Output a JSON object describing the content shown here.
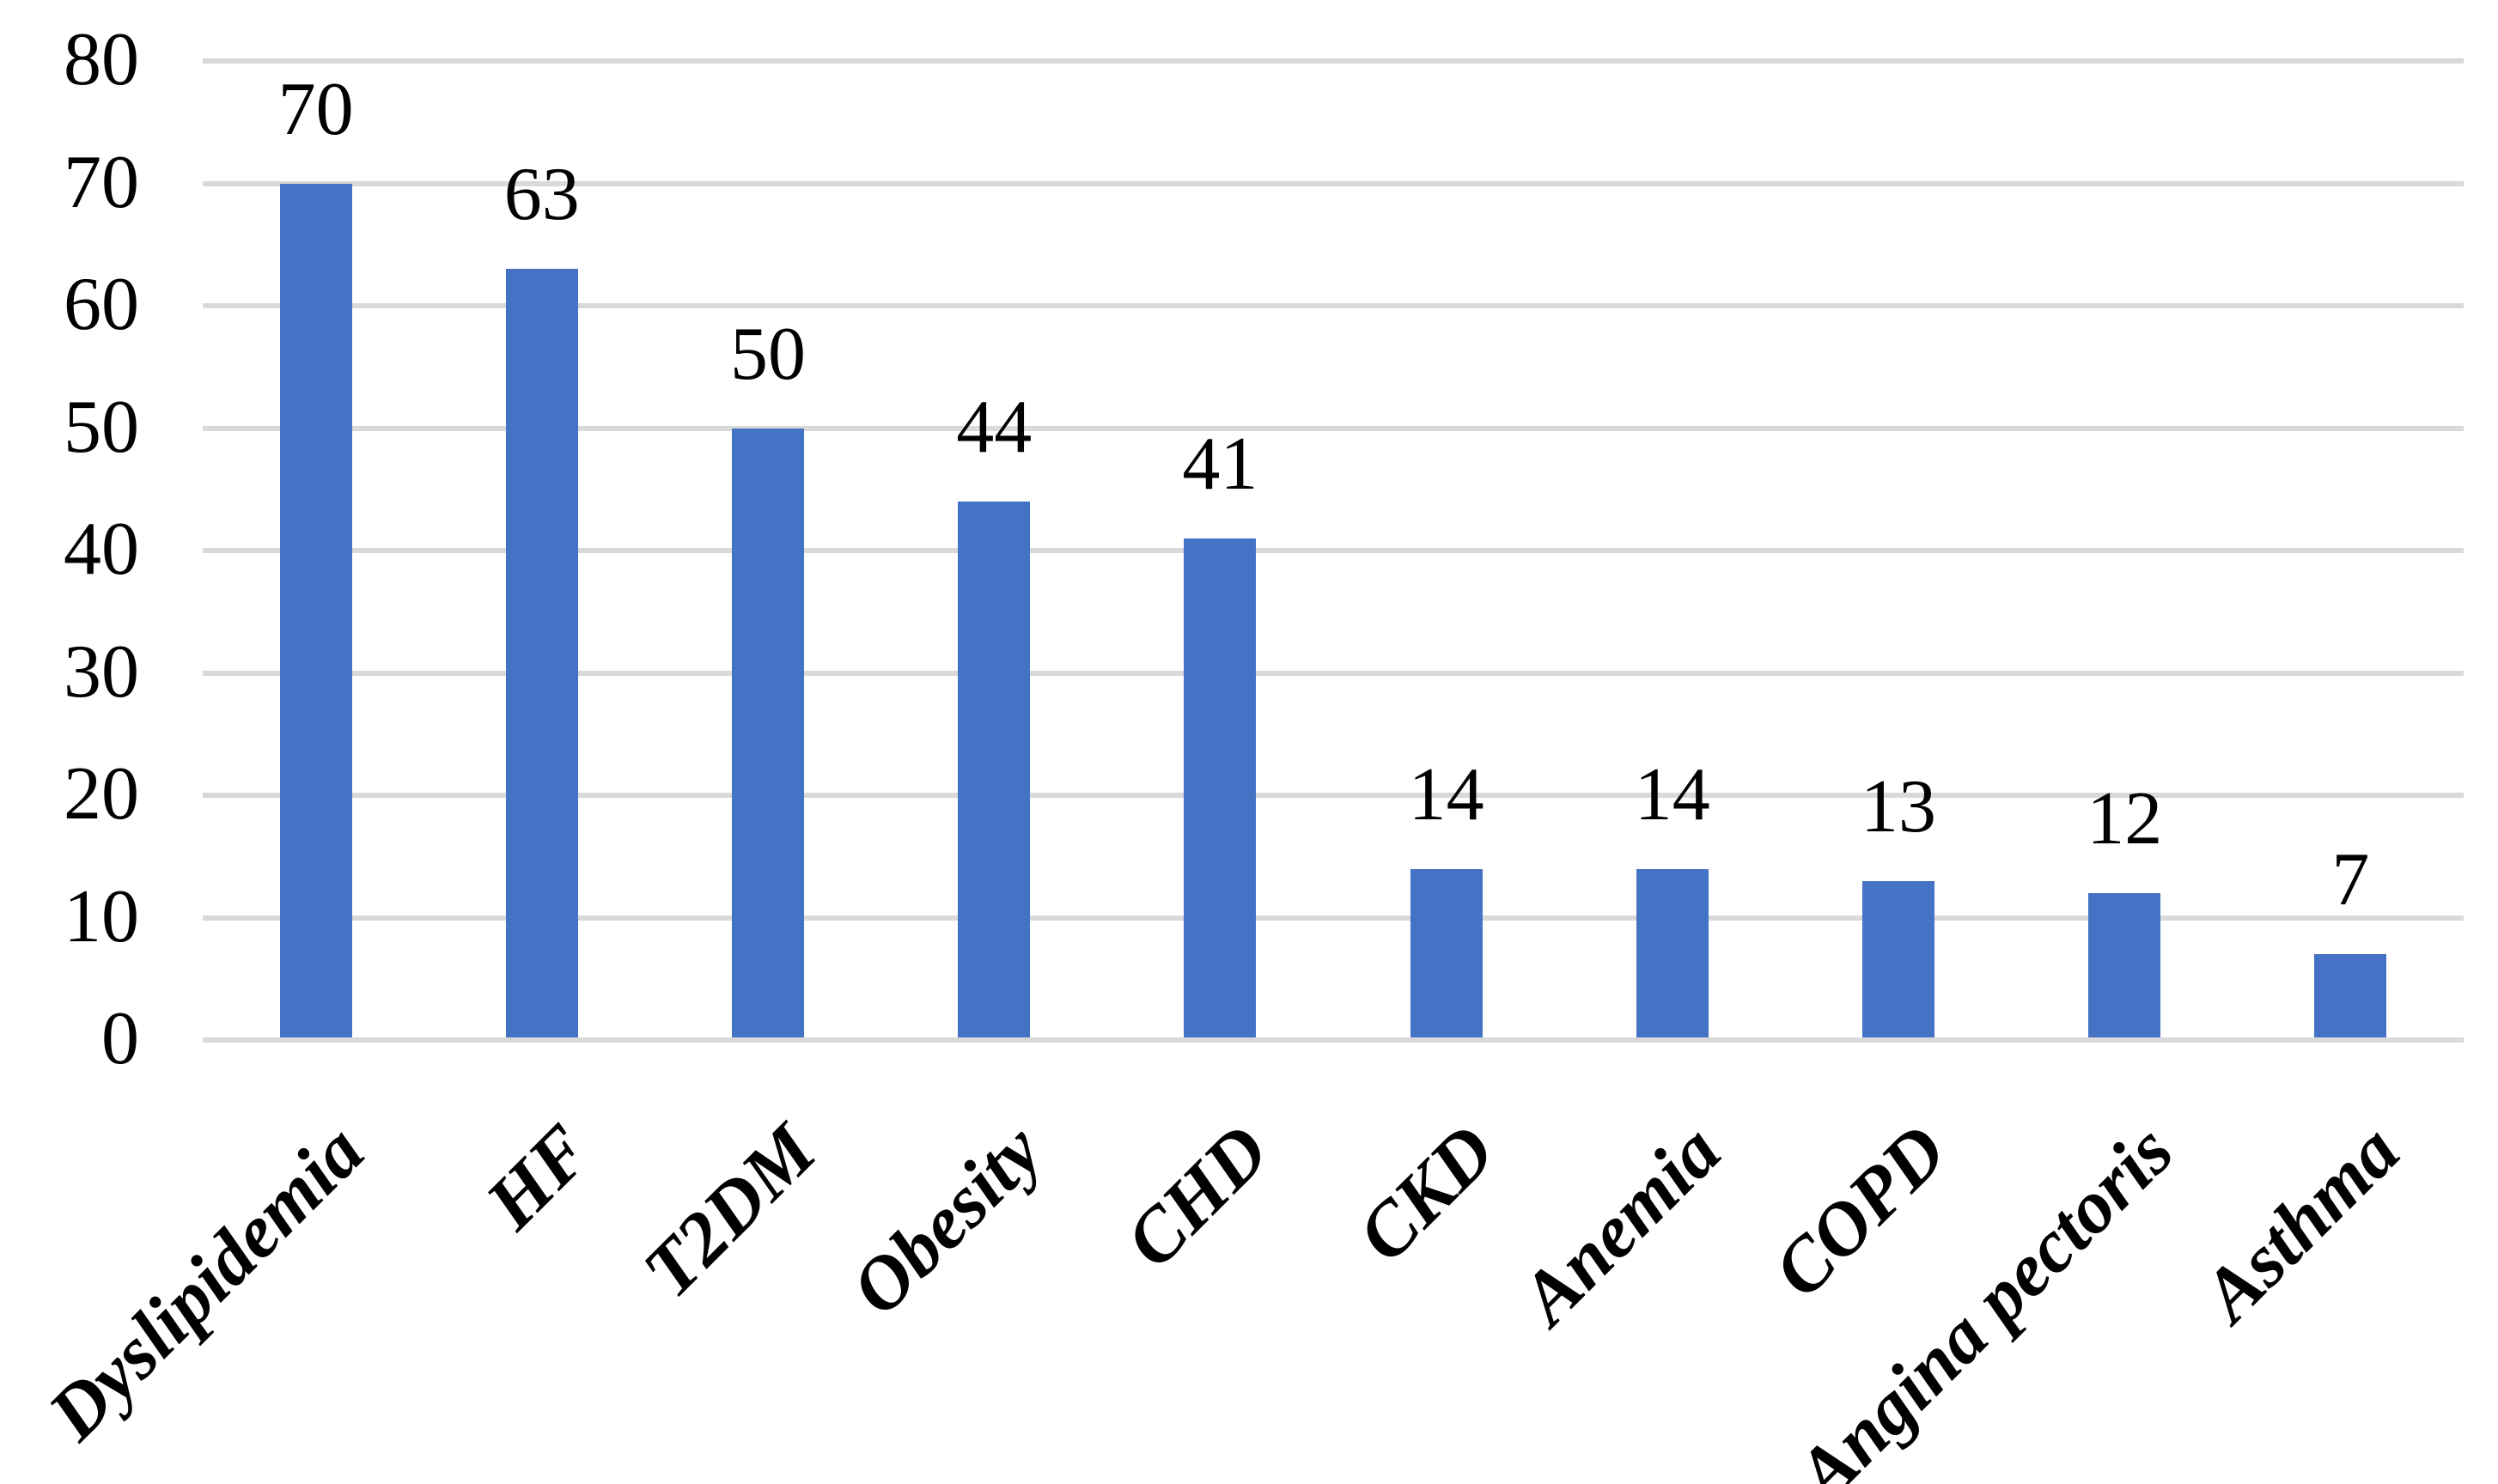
{
  "chart_data": {
    "type": "bar",
    "title": "",
    "xlabel": "",
    "ylabel": "",
    "categories": [
      "Dyslipidemia",
      "HF",
      "T2DM",
      "Obesity",
      "CHD",
      "CKD",
      "Anemia",
      "COPD",
      "Angina pectoris",
      "Asthma"
    ],
    "values": [
      70,
      63,
      50,
      44,
      41,
      14,
      14,
      13,
      12,
      7
    ],
    "data_labels": [
      70,
      63,
      50,
      44,
      41,
      14,
      14,
      13,
      12,
      7
    ],
    "ylim": [
      0,
      80
    ],
    "yticks": [
      0,
      10,
      20,
      30,
      40,
      50,
      60,
      70,
      80
    ],
    "grid": true,
    "legend": false,
    "x_tick_rotation_deg": 45,
    "colors": {
      "bar": "#4472C4",
      "gridline": "#D9D9D9",
      "text": "#000000",
      "background": "#FFFFFF"
    }
  }
}
